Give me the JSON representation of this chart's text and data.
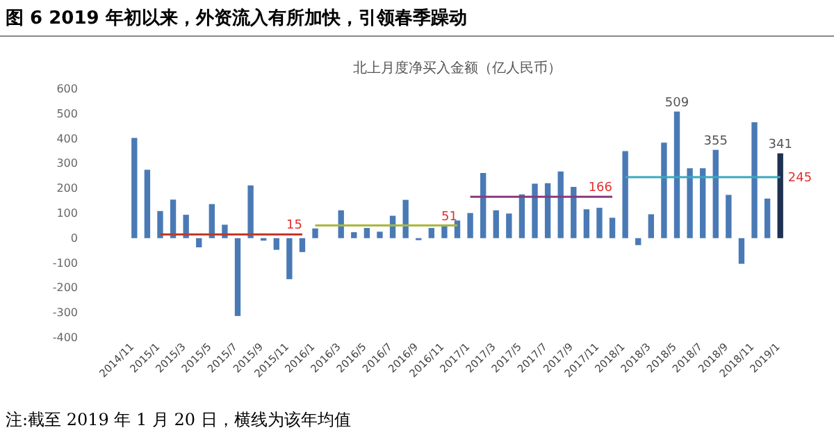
{
  "chart_data": {
    "type": "bar",
    "title": "图 6 2019 年初以来，外资流入有所加快，引领春季躁动",
    "subtitle": "北上月度净买入金额（亿人民币）",
    "categories": [
      "2014/11",
      null,
      "2015/1",
      null,
      "2015/3",
      null,
      "2015/5",
      null,
      "2015/7",
      null,
      "2015/9",
      null,
      "2015/11",
      null,
      "2016/1",
      null,
      "2016/3",
      null,
      "2016/5",
      null,
      "2016/7",
      null,
      "2016/9",
      null,
      "2016/11",
      null,
      "2017/1",
      null,
      "2017/3",
      null,
      "2017/5",
      null,
      "2017/7",
      null,
      "2017/9",
      null,
      "2017/11",
      null,
      "2018/1",
      null,
      "2018/3",
      null,
      "2018/5",
      null,
      "2018/7",
      null,
      "2018/9",
      null,
      "2018/11",
      null,
      "2019/1"
    ],
    "series": [
      {
        "values": [
          403,
          275,
          109,
          155,
          94,
          -37,
          137,
          54,
          -313,
          212,
          -10,
          -47,
          -165,
          -56,
          39,
          0,
          112,
          24,
          41,
          26,
          90,
          154,
          -8,
          41,
          52,
          71,
          101,
          262,
          112,
          99,
          176,
          219,
          221,
          268,
          206,
          116,
          122,
          82,
          350,
          -28,
          96,
          384,
          509,
          281,
          281,
          355,
          174,
          -103,
          466,
          159,
          341
        ],
        "colors": [
          "#4a7ab5",
          "#4a7ab5",
          "#4a7ab5",
          "#4a7ab5",
          "#4a7ab5",
          "#4a7ab5",
          "#4a7ab5",
          "#4a7ab5",
          "#4a7ab5",
          "#4a7ab5",
          "#4a7ab5",
          "#4a7ab5",
          "#4a7ab5",
          "#4a7ab5",
          "#4a7ab5",
          "#4a7ab5",
          "#4a7ab5",
          "#4a7ab5",
          "#4a7ab5",
          "#4a7ab5",
          "#4a7ab5",
          "#4a7ab5",
          "#4a7ab5",
          "#4a7ab5",
          "#4a7ab5",
          "#4a7ab5",
          "#4a7ab5",
          "#4a7ab5",
          "#4a7ab5",
          "#4a7ab5",
          "#4a7ab5",
          "#4a7ab5",
          "#4a7ab5",
          "#4a7ab5",
          "#4a7ab5",
          "#4a7ab5",
          "#4a7ab5",
          "#4a7ab5",
          "#4a7ab5",
          "#4a7ab5",
          "#4a7ab5",
          "#4a7ab5",
          "#4a7ab5",
          "#4a7ab5",
          "#4a7ab5",
          "#4a7ab5",
          "#4a7ab5",
          "#4a7ab5",
          "#4a7ab5",
          "#4a7ab5",
          "#1f3150"
        ],
        "value_labels": [
          null,
          null,
          null,
          null,
          null,
          null,
          null,
          null,
          null,
          null,
          null,
          null,
          null,
          null,
          null,
          null,
          null,
          null,
          null,
          null,
          null,
          null,
          null,
          null,
          null,
          null,
          null,
          null,
          null,
          null,
          null,
          null,
          null,
          null,
          null,
          null,
          null,
          null,
          null,
          null,
          null,
          null,
          "509",
          null,
          null,
          "355",
          null,
          null,
          null,
          null,
          "341"
        ]
      },
      {
        "type": "line",
        "color": "#c0392b",
        "values": [
          null,
          null,
          15,
          15,
          15,
          15,
          15,
          15,
          15,
          15,
          15,
          15,
          15,
          15,
          null,
          null,
          null,
          null,
          null,
          null,
          null,
          null,
          null,
          null,
          null,
          null,
          null,
          null,
          null,
          null,
          null,
          null,
          null,
          null,
          null,
          null,
          null,
          null,
          null,
          null,
          null,
          null,
          null,
          null,
          null,
          null,
          null,
          null,
          null,
          null,
          null
        ],
        "value_labels": [
          null,
          null,
          null,
          null,
          null,
          null,
          null,
          null,
          null,
          null,
          null,
          null,
          null,
          "15",
          null,
          null,
          null,
          null,
          null,
          null,
          null,
          null,
          null,
          null,
          null,
          null,
          null,
          null,
          null,
          null,
          null,
          null,
          null,
          null,
          null,
          null,
          null,
          null,
          null,
          null,
          null,
          null,
          null,
          null,
          null,
          null,
          null,
          null,
          null,
          null,
          null
        ]
      },
      {
        "type": "line",
        "color": "#a8b83a",
        "values": [
          null,
          null,
          null,
          null,
          null,
          null,
          null,
          null,
          null,
          null,
          null,
          null,
          null,
          null,
          51,
          51,
          51,
          51,
          51,
          51,
          51,
          51,
          51,
          51,
          51,
          51,
          null,
          null,
          null,
          null,
          null,
          null,
          null,
          null,
          null,
          null,
          null,
          null,
          null,
          null,
          null,
          null,
          null,
          null,
          null,
          null,
          null,
          null,
          null,
          null,
          null
        ],
        "value_labels": [
          null,
          null,
          null,
          null,
          null,
          null,
          null,
          null,
          null,
          null,
          null,
          null,
          null,
          null,
          null,
          null,
          null,
          null,
          null,
          null,
          null,
          null,
          null,
          null,
          null,
          "51",
          null,
          null,
          null,
          null,
          null,
          null,
          null,
          null,
          null,
          null,
          null,
          null,
          null,
          null,
          null,
          null,
          null,
          null,
          null,
          null,
          null,
          null,
          null,
          null,
          null
        ]
      },
      {
        "type": "line",
        "color": "#8a3a7e",
        "values": [
          null,
          null,
          null,
          null,
          null,
          null,
          null,
          null,
          null,
          null,
          null,
          null,
          null,
          null,
          null,
          null,
          null,
          null,
          null,
          null,
          null,
          null,
          null,
          null,
          null,
          null,
          166,
          166,
          166,
          166,
          166,
          166,
          166,
          166,
          166,
          166,
          166,
          166,
          null,
          null,
          null,
          null,
          null,
          null,
          null,
          null,
          null,
          null,
          null,
          null,
          null
        ],
        "value_labels": [
          null,
          null,
          null,
          null,
          null,
          null,
          null,
          null,
          null,
          null,
          null,
          null,
          null,
          null,
          null,
          null,
          null,
          null,
          null,
          null,
          null,
          null,
          null,
          null,
          null,
          null,
          null,
          null,
          null,
          null,
          null,
          null,
          null,
          null,
          null,
          null,
          null,
          "166",
          null,
          null,
          null,
          null,
          null,
          null,
          null,
          null,
          null,
          null,
          null,
          null,
          null
        ]
      },
      {
        "type": "line",
        "color": "#3aa8c0",
        "values": [
          null,
          null,
          null,
          null,
          null,
          null,
          null,
          null,
          null,
          null,
          null,
          null,
          null,
          null,
          null,
          null,
          null,
          null,
          null,
          null,
          null,
          null,
          null,
          null,
          null,
          null,
          null,
          null,
          null,
          null,
          null,
          null,
          null,
          null,
          null,
          null,
          null,
          null,
          245,
          245,
          245,
          245,
          245,
          245,
          245,
          245,
          245,
          245,
          245,
          245,
          245
        ],
        "value_labels": [
          null,
          null,
          null,
          null,
          null,
          null,
          null,
          null,
          null,
          null,
          null,
          null,
          null,
          null,
          null,
          null,
          null,
          null,
          null,
          null,
          null,
          null,
          null,
          null,
          null,
          null,
          null,
          null,
          null,
          null,
          null,
          null,
          null,
          null,
          null,
          null,
          null,
          null,
          null,
          null,
          null,
          null,
          null,
          null,
          null,
          null,
          null,
          null,
          null,
          null,
          "245"
        ]
      }
    ],
    "ylim": [
      -400,
      600
    ],
    "yticks": [
      -400,
      -300,
      -200,
      -100,
      0,
      100,
      200,
      300,
      400,
      500,
      600
    ],
    "grid": false,
    "annotations": [
      "注:截至 2019 年 1 月 20 日，横线为该年均值"
    ]
  }
}
